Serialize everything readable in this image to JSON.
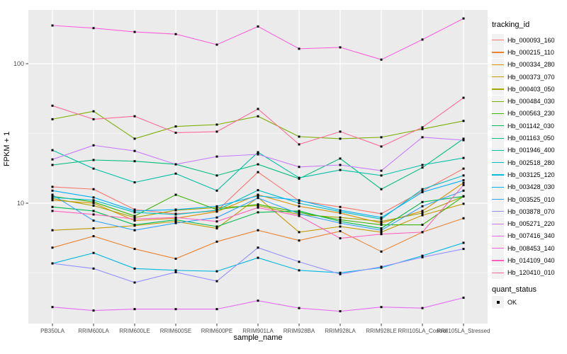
{
  "figure": {
    "y_axis_title": "FPKM + 1",
    "x_axis_title": "sample_name",
    "legend": {
      "tracking_title": "tracking_id",
      "quant_title": "quant_status",
      "quant_items": [
        {
          "label": "OK"
        }
      ]
    }
  },
  "chart_data": {
    "type": "line",
    "title": "",
    "xlabel": "sample_name",
    "ylabel": "FPKM + 1",
    "y_scale": "log10",
    "y_ticks": [
      100,
      10
    ],
    "y_minor": [
      31.62,
      3.162
    ],
    "ylim": [
      1.37,
      243
    ],
    "grid": "white major and minor on grey panel",
    "legend_position": "right",
    "marker": "black-square",
    "style": {
      "panel_bg": "#EBEBEB",
      "grid_color": "#FFFFFF",
      "tick_color": "#333333",
      "tick_label_color": "#4D4D4D"
    },
    "x": [
      "PB350LA",
      "RRIM600LA",
      "RRIM600LE",
      "RRIM600SE",
      "RRIM600PE",
      "RRIM901LA",
      "RRIM928BA",
      "RRIM928LA",
      "RRIM928LE",
      "RRII105LA_Control",
      "RRII105LA_Stressed"
    ],
    "series": [
      {
        "name": "Hb_000093_160",
        "color": "#F8766D",
        "values": [
          13.1,
          12.6,
          9.0,
          8.4,
          8.8,
          16.7,
          10.4,
          9.4,
          8.4,
          12.2,
          17.7
        ]
      },
      {
        "name": "Hb_000215_110",
        "color": "#EA8331",
        "values": [
          4.8,
          5.8,
          4.7,
          4.0,
          5.3,
          6.4,
          5.4,
          6.3,
          4.5,
          6.2,
          7.8
        ]
      },
      {
        "name": "Hb_000334_280",
        "color": "#D89000",
        "values": [
          10.5,
          10.0,
          7.5,
          7.8,
          8.7,
          11.5,
          9.5,
          8.5,
          7.2,
          8.8,
          14.0
        ]
      },
      {
        "name": "Hb_000373_070",
        "color": "#C09B00",
        "values": [
          6.4,
          6.6,
          6.9,
          7.4,
          6.6,
          11.0,
          6.2,
          6.8,
          6.2,
          8.2,
          9.9
        ]
      },
      {
        "name": "Hb_000403_050",
        "color": "#A3A500",
        "values": [
          10.8,
          9.6,
          7.9,
          8.9,
          9.3,
          9.6,
          8.3,
          7.9,
          7.4,
          8.5,
          11.2
        ]
      },
      {
        "name": "Hb_000484_030",
        "color": "#7CAE00",
        "values": [
          40.0,
          45.6,
          29.0,
          35.5,
          36.6,
          42.0,
          30.0,
          29.0,
          29.7,
          34.0,
          38.9
        ]
      },
      {
        "name": "Hb_000563_230",
        "color": "#39B600",
        "values": [
          11.2,
          10.2,
          8.1,
          11.5,
          9.0,
          9.8,
          8.6,
          7.6,
          7.0,
          7.0,
          11.2
        ]
      },
      {
        "name": "Hb_001142_030",
        "color": "#00BB4E",
        "values": [
          9.4,
          8.8,
          7.0,
          7.6,
          6.8,
          8.6,
          8.8,
          7.4,
          6.6,
          10.2,
          11.2
        ]
      },
      {
        "name": "Hb_001163_050",
        "color": "#00BF7D",
        "values": [
          18.8,
          20.4,
          20.0,
          19.0,
          15.8,
          19.0,
          15.0,
          20.9,
          12.6,
          18.0,
          29.0
        ]
      },
      {
        "name": "Hb_001946_400",
        "color": "#00C1A3",
        "values": [
          24.0,
          17.7,
          14.1,
          16.3,
          12.3,
          23.2,
          15.2,
          17.3,
          15.8,
          18.8,
          21.1
        ]
      },
      {
        "name": "Hb_002518_280",
        "color": "#00BFC4",
        "values": [
          11.0,
          10.5,
          8.6,
          8.3,
          8.9,
          12.4,
          10.0,
          8.7,
          7.7,
          12.6,
          15.8
        ]
      },
      {
        "name": "Hb_003125_120",
        "color": "#00BAE0",
        "values": [
          3.7,
          4.4,
          3.4,
          3.3,
          3.25,
          4.06,
          3.3,
          3.17,
          3.45,
          4.2,
          5.2
        ]
      },
      {
        "name": "Hb_003428_030",
        "color": "#00B0F6",
        "values": [
          12.3,
          11.0,
          8.8,
          9.0,
          9.5,
          11.3,
          10.5,
          8.9,
          7.9,
          12.0,
          14.6
        ]
      },
      {
        "name": "Hb_003525_010",
        "color": "#35A2FF",
        "values": [
          11.5,
          7.5,
          6.4,
          7.2,
          7.9,
          10.9,
          8.4,
          7.2,
          6.4,
          9.5,
          12.3
        ]
      },
      {
        "name": "Hb_003878_070",
        "color": "#9590FF",
        "values": [
          3.7,
          3.4,
          2.7,
          3.2,
          2.76,
          4.8,
          3.8,
          3.1,
          3.5,
          4.1,
          4.7
        ]
      },
      {
        "name": "Hb_005271_220",
        "color": "#C77CFF",
        "values": [
          20.6,
          26.0,
          23.7,
          19.0,
          21.6,
          22.4,
          18.2,
          18.8,
          17.1,
          29.7,
          28.3
        ]
      },
      {
        "name": "Hb_007416_340",
        "color": "#E76BF3",
        "values": [
          1.8,
          1.7,
          1.74,
          1.74,
          1.74,
          2.0,
          1.77,
          1.68,
          1.8,
          1.77,
          2.1
        ]
      },
      {
        "name": "Hb_008453_140",
        "color": "#FA62DB",
        "values": [
          188,
          180,
          169,
          163,
          137,
          185,
          128,
          131,
          107,
          149,
          211
        ]
      },
      {
        "name": "Hb_014109_040",
        "color": "#FF62BC",
        "values": [
          8.8,
          8.3,
          7.7,
          7.9,
          7.4,
          9.3,
          8.1,
          5.6,
          6.0,
          6.2,
          13.5
        ]
      },
      {
        "name": "Hb_120410_010",
        "color": "#FF6A98",
        "values": [
          50.0,
          40.0,
          42.0,
          32.0,
          32.6,
          47.4,
          26.4,
          32.6,
          25.5,
          35.0,
          57.0
        ]
      }
    ],
    "quant_status": {
      "title": "quant_status",
      "items": [
        "OK"
      ]
    }
  }
}
